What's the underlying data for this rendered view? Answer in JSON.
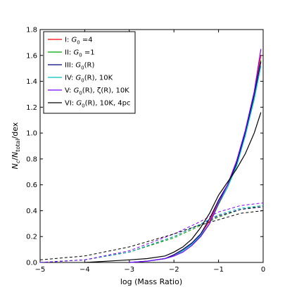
{
  "chart_data": {
    "type": "line",
    "xlabel": "log (Mass Ratio)",
    "ylabel": "N_c / N_total / dex",
    "xlim": [
      -5,
      0
    ],
    "ylim": [
      0,
      1.8
    ],
    "xticks": [
      "−5",
      "−4",
      "−3",
      "−2",
      "−1",
      "0"
    ],
    "xtick_values": [
      -5,
      -4,
      -3,
      -2,
      -1,
      0
    ],
    "yticks": [
      "0.0",
      "0.2",
      "0.4",
      "0.6",
      "0.8",
      "1.0",
      "1.2",
      "1.4",
      "1.6",
      "1.8"
    ],
    "ytick_values": [
      0,
      0.2,
      0.4,
      0.6,
      0.8,
      1.0,
      1.2,
      1.4,
      1.6,
      1.8
    ],
    "grid": false,
    "legend_position": "top-left",
    "series": [
      {
        "name": "I: G0 = 4",
        "color": "#ff0000",
        "x": [
          -3.0,
          -2.6,
          -2.2,
          -2.0,
          -1.8,
          -1.6,
          -1.4,
          -1.2,
          -1.0,
          -0.8,
          -0.6,
          -0.4,
          -0.2,
          -0.05
        ],
        "y": [
          0.0,
          0.01,
          0.03,
          0.06,
          0.1,
          0.15,
          0.22,
          0.32,
          0.48,
          0.6,
          0.78,
          1.0,
          1.3,
          1.6
        ],
        "x_dashed": [
          -5,
          -4,
          -3,
          -2,
          -1.5,
          -1,
          -0.5,
          0
        ],
        "y_dashed": [
          0.0,
          0.02,
          0.08,
          0.2,
          0.28,
          0.36,
          0.41,
          0.43
        ]
      },
      {
        "name": "II: G0 = 1",
        "color": "#00a000",
        "x": [
          -3.0,
          -2.6,
          -2.2,
          -2.0,
          -1.8,
          -1.6,
          -1.4,
          -1.2,
          -1.0,
          -0.8,
          -0.6,
          -0.4,
          -0.2,
          -0.05
        ],
        "y": [
          0.0,
          0.01,
          0.03,
          0.05,
          0.09,
          0.14,
          0.2,
          0.3,
          0.45,
          0.58,
          0.76,
          0.98,
          1.28,
          1.56
        ],
        "x_dashed": [
          -5,
          -4,
          -3,
          -2,
          -1.5,
          -1,
          -0.5,
          0
        ],
        "y_dashed": [
          0.0,
          0.02,
          0.08,
          0.19,
          0.27,
          0.35,
          0.41,
          0.44
        ]
      },
      {
        "name": "III: G0(R)",
        "color": "#000080",
        "x": [
          -3.0,
          -2.6,
          -2.2,
          -2.0,
          -1.8,
          -1.6,
          -1.4,
          -1.2,
          -1.0,
          -0.8,
          -0.6,
          -0.4,
          -0.2,
          -0.05
        ],
        "y": [
          0.0,
          0.01,
          0.03,
          0.06,
          0.1,
          0.15,
          0.22,
          0.34,
          0.48,
          0.6,
          0.76,
          1.0,
          1.3,
          1.55
        ],
        "x_dashed": [
          -5,
          -4,
          -3,
          -2,
          -1.5,
          -1,
          -0.5,
          0
        ],
        "y_dashed": [
          0.0,
          0.02,
          0.08,
          0.2,
          0.28,
          0.36,
          0.41,
          0.43
        ]
      },
      {
        "name": "IV: G0(R), 10K",
        "color": "#00c0c0",
        "x": [
          -3.0,
          -2.6,
          -2.2,
          -2.0,
          -1.8,
          -1.6,
          -1.4,
          -1.2,
          -1.0,
          -0.8,
          -0.6,
          -0.4,
          -0.2,
          -0.05
        ],
        "y": [
          0.0,
          0.01,
          0.03,
          0.05,
          0.09,
          0.14,
          0.21,
          0.3,
          0.46,
          0.58,
          0.74,
          0.98,
          1.26,
          1.52
        ],
        "x_dashed": [
          -5,
          -4,
          -3,
          -2,
          -1.5,
          -1,
          -0.5,
          0
        ],
        "y_dashed": [
          0.0,
          0.02,
          0.08,
          0.2,
          0.28,
          0.37,
          0.42,
          0.44
        ]
      },
      {
        "name": "V: G0(R), ζ(R), 10K",
        "color": "#8000ff",
        "x": [
          -3.0,
          -2.6,
          -2.2,
          -2.0,
          -1.8,
          -1.6,
          -1.4,
          -1.2,
          -1.0,
          -0.8,
          -0.6,
          -0.4,
          -0.2,
          -0.05
        ],
        "y": [
          0.0,
          0.01,
          0.03,
          0.05,
          0.08,
          0.13,
          0.2,
          0.3,
          0.46,
          0.6,
          0.78,
          1.02,
          1.32,
          1.65
        ],
        "x_dashed": [
          -5,
          -4,
          -3,
          -2,
          -1.5,
          -1,
          -0.5,
          0
        ],
        "y_dashed": [
          0.0,
          0.02,
          0.09,
          0.22,
          0.3,
          0.39,
          0.44,
          0.46
        ]
      },
      {
        "name": "VI: G0(R), 10K, 4pc",
        "color": "#000000",
        "x": [
          -4.0,
          -3.5,
          -3.0,
          -2.6,
          -2.2,
          -2.0,
          -1.8,
          -1.6,
          -1.4,
          -1.2,
          -1.0,
          -0.8,
          -0.6,
          -0.4,
          -0.2,
          -0.05
        ],
        "y": [
          0.0,
          0.01,
          0.02,
          0.03,
          0.05,
          0.08,
          0.12,
          0.18,
          0.27,
          0.38,
          0.52,
          0.62,
          0.72,
          0.84,
          1.0,
          1.16
        ],
        "x_dashed": [
          -5,
          -4,
          -3,
          -2,
          -1.5,
          -1,
          -0.5,
          0
        ],
        "y_dashed": [
          0.02,
          0.05,
          0.12,
          0.22,
          0.28,
          0.33,
          0.38,
          0.4
        ]
      }
    ]
  },
  "legend": {
    "entries": [
      {
        "prefix": "I: ",
        "sym": "G",
        "sub": "0",
        "suffix": " =4"
      },
      {
        "prefix": "II: ",
        "sym": "G",
        "sub": "0",
        "suffix": " =1"
      },
      {
        "prefix": "III: ",
        "sym": "G",
        "sub": "0",
        "suffix": "(R)"
      },
      {
        "prefix": "IV: ",
        "sym": "G",
        "sub": "0",
        "suffix": "(R), 10K"
      },
      {
        "prefix": "V: ",
        "sym": "G",
        "sub": "0",
        "suffix": "(R), ζ(R), 10K"
      },
      {
        "prefix": "VI: ",
        "sym": "G",
        "sub": "0",
        "suffix": "(R), 10K, 4pc"
      }
    ]
  },
  "ylabel_parts": {
    "n": "N",
    "sub_c": "c",
    "slash": "/",
    "sub_total": "total",
    "dex": "/dex"
  }
}
